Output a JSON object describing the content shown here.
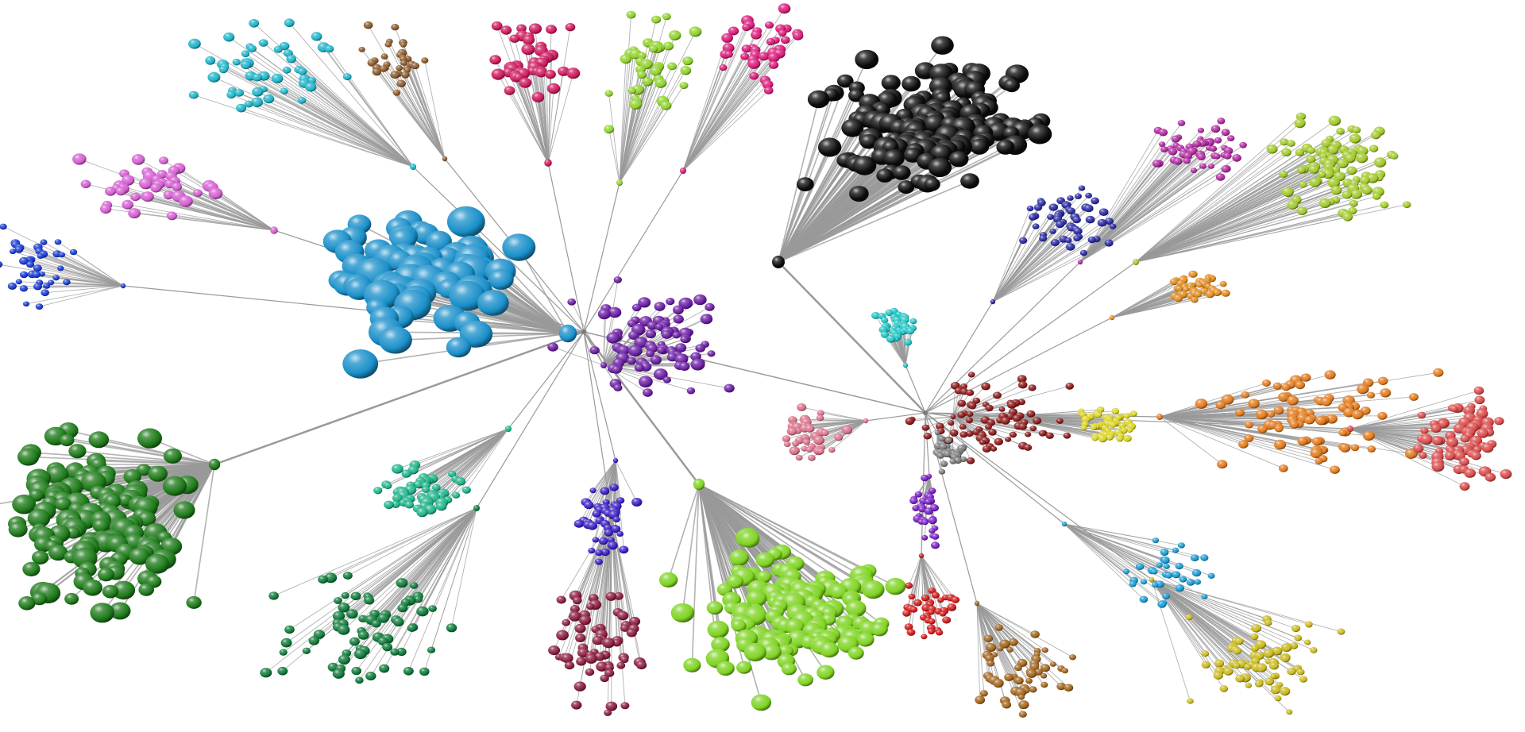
{
  "graph": {
    "background": "#ffffff",
    "edge_color": "#9a9a9a",
    "hubs": [
      {
        "id": "hub-left-center",
        "color": "#7a7a7a"
      },
      {
        "id": "hub-right-center",
        "color": "#7a7a7a"
      }
    ],
    "clusters": [
      {
        "id": "cyan-cluster",
        "color": "#1fb3c7",
        "size": "small",
        "hub": "hub-left-center"
      },
      {
        "id": "brown-cluster",
        "color": "#8a5a2b",
        "size": "small",
        "hub": "hub-left-center"
      },
      {
        "id": "crimson-cluster",
        "color": "#cc1a5e",
        "size": "small",
        "hub": "hub-left-center"
      },
      {
        "id": "lime-top-cluster",
        "color": "#8fd12b",
        "size": "small",
        "hub": "hub-left-center"
      },
      {
        "id": "pink-top-cluster",
        "color": "#d81b7a",
        "size": "small",
        "hub": "hub-left-center"
      },
      {
        "id": "black-cluster",
        "color": "#0c0c0c",
        "size": "large",
        "hub": "hub-right-center"
      },
      {
        "id": "orchid-cluster",
        "color": "#d35ed0",
        "size": "small",
        "hub": "hub-left-center"
      },
      {
        "id": "blue-left-cluster",
        "color": "#1a3bd1",
        "size": "small",
        "hub": "hub-left-center"
      },
      {
        "id": "big-blue-cluster",
        "color": "#1a8fc9",
        "size": "large",
        "hub": "hub-left-center"
      },
      {
        "id": "purple-center-cluster",
        "color": "#6b1fa3",
        "size": "small",
        "hub": "hub-left-center"
      },
      {
        "id": "green-dark-cluster",
        "color": "#1e7a1a",
        "size": "large",
        "hub": "hub-left-center"
      },
      {
        "id": "teal-cluster",
        "color": "#1fb38a",
        "size": "small",
        "hub": "hub-left-center"
      },
      {
        "id": "forest-green-cluster",
        "color": "#0f7a3a",
        "size": "small",
        "hub": "hub-left-center"
      },
      {
        "id": "lime-big-cluster",
        "color": "#7ed321",
        "size": "large",
        "hub": "hub-left-center"
      },
      {
        "id": "maroon-cluster",
        "color": "#8b1e3f",
        "size": "small",
        "hub": "hub-left-center"
      },
      {
        "id": "indigo-cluster",
        "color": "#3a1fc4",
        "size": "small",
        "hub": "hub-left-center"
      },
      {
        "id": "yellow-cluster",
        "color": "#d8d21e",
        "size": "small",
        "hub": "hub-right-center"
      },
      {
        "id": "orange-right-cluster",
        "color": "#e07a1e",
        "size": "small",
        "hub": "hub-right-center"
      },
      {
        "id": "salmon-cluster",
        "color": "#d94a4a",
        "size": "small",
        "hub": "hub-right-center"
      },
      {
        "id": "dark-red-cluster",
        "color": "#8b1a1a",
        "size": "small",
        "hub": "hub-right-center"
      },
      {
        "id": "yellow-green-cluster",
        "color": "#a0c82a",
        "size": "small",
        "hub": "hub-right-center"
      },
      {
        "id": "navy-cluster",
        "color": "#2a2aa0",
        "size": "small",
        "hub": "hub-right-center"
      },
      {
        "id": "orange-small-cluster",
        "color": "#e08a1e",
        "size": "small",
        "hub": "hub-right-center"
      },
      {
        "id": "turquoise-cluster",
        "color": "#21c3c3",
        "size": "small",
        "hub": "hub-right-center"
      },
      {
        "id": "magenta-cluster",
        "color": "#b02aa0",
        "size": "small",
        "hub": "hub-right-center"
      },
      {
        "id": "gray-cluster",
        "color": "#7a7a7a",
        "size": "small",
        "hub": "hub-right-center"
      },
      {
        "id": "red-cluster",
        "color": "#d11a1a",
        "size": "small",
        "hub": "hub-right-center"
      },
      {
        "id": "rose-cluster",
        "color": "#d9708a",
        "size": "small",
        "hub": "hub-right-center"
      },
      {
        "id": "olive-yellow-cluster",
        "color": "#c8b81e",
        "size": "small",
        "hub": "hub-right-center"
      },
      {
        "id": "sky-blue-cluster",
        "color": "#1a9ad1",
        "size": "small",
        "hub": "hub-right-center"
      },
      {
        "id": "brown-bottom-cluster",
        "color": "#a0641e",
        "size": "small",
        "hub": "hub-right-center"
      },
      {
        "id": "violet-cluster",
        "color": "#7a1fc4",
        "size": "small",
        "hub": "hub-right-center"
      }
    ]
  }
}
